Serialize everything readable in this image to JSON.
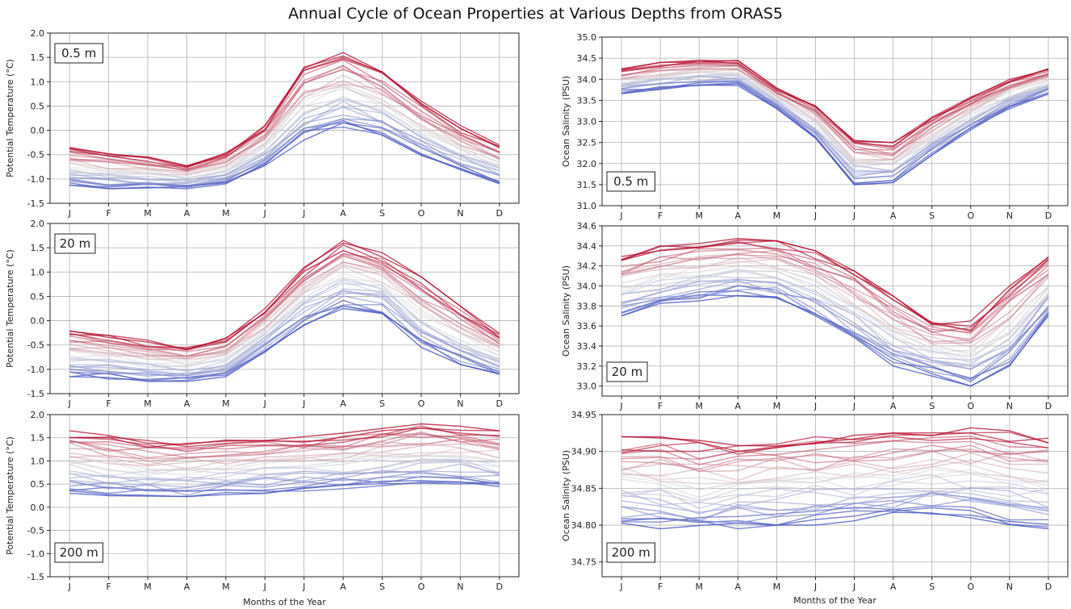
{
  "title": "Annual Cycle of Ocean Properties at Various Depths from ORAS5",
  "xlabel_left": "Months of the Year",
  "xlabel_right": "Months of the Year",
  "colors": {
    "cool": "#3b4cc0",
    "neutral": "#dddddd",
    "warm": "#b40426"
  },
  "chart_data": [
    {
      "type": "line",
      "depth_label": "0.5 m",
      "ylabel": "Potential Temperature (°C)",
      "ylim": [
        -1.5,
        2.0
      ],
      "yticks": [
        -1.5,
        -1.0,
        -0.5,
        0.0,
        0.5,
        1.0,
        1.5,
        2.0
      ],
      "ytick_labels": [
        "-1.5",
        "-1.0",
        "-0.5",
        "0.0",
        "0.5",
        "1.0",
        "1.5",
        "2.0"
      ],
      "categories": [
        "J",
        "F",
        "M",
        "A",
        "M",
        "J",
        "J",
        "A",
        "S",
        "O",
        "N",
        "D"
      ],
      "grid": true,
      "ensemble_mean": [
        -0.85,
        -0.9,
        -0.95,
        -1.0,
        -0.85,
        -0.45,
        0.2,
        0.75,
        0.45,
        0.0,
        -0.45,
        -0.75
      ],
      "low_envelope": [
        -1.15,
        -1.2,
        -1.2,
        -1.2,
        -1.1,
        -0.75,
        -0.2,
        0.05,
        -0.1,
        -0.55,
        -0.85,
        -1.1
      ],
      "high_envelope": [
        -0.35,
        -0.45,
        -0.55,
        -0.7,
        -0.45,
        0.1,
        1.3,
        1.6,
        1.2,
        0.6,
        0.1,
        -0.3
      ],
      "series_count": 30
    },
    {
      "type": "line",
      "depth_label": "0.5 m",
      "ylabel": "Ocean Salinity (PSU)",
      "ylim": [
        31.0,
        35.0
      ],
      "yticks": [
        31.0,
        31.5,
        32.0,
        32.5,
        33.0,
        33.5,
        34.0,
        34.5,
        35.0
      ],
      "ytick_labels": [
        "31.0",
        "31.5",
        "32.0",
        "32.5",
        "33.0",
        "33.5",
        "34.0",
        "34.5",
        "35.0"
      ],
      "categories": [
        "J",
        "F",
        "M",
        "A",
        "M",
        "J",
        "J",
        "A",
        "S",
        "O",
        "N",
        "D"
      ],
      "grid": true,
      "ensemble_mean": [
        34.0,
        34.1,
        34.15,
        34.15,
        33.6,
        33.0,
        32.1,
        31.95,
        32.7,
        33.25,
        33.65,
        33.95
      ],
      "low_envelope": [
        33.65,
        33.75,
        33.85,
        33.85,
        33.3,
        32.6,
        31.5,
        31.55,
        32.2,
        32.8,
        33.3,
        33.65
      ],
      "high_envelope": [
        34.25,
        34.4,
        34.45,
        34.45,
        33.8,
        33.4,
        32.55,
        32.5,
        33.1,
        33.6,
        34.0,
        34.25
      ],
      "series_count": 30
    },
    {
      "type": "line",
      "depth_label": "20 m",
      "ylabel": "Potential Temperature (°C)",
      "ylim": [
        -1.5,
        2.0
      ],
      "yticks": [
        -1.5,
        -1.0,
        -0.5,
        0.0,
        0.5,
        1.0,
        1.5,
        2.0
      ],
      "ytick_labels": [
        "-1.5",
        "-1.0",
        "-0.5",
        "0.0",
        "0.5",
        "1.0",
        "1.5",
        "2.0"
      ],
      "categories": [
        "J",
        "F",
        "M",
        "A",
        "M",
        "J",
        "J",
        "A",
        "S",
        "O",
        "N",
        "D"
      ],
      "grid": true,
      "ensemble_mean": [
        -0.85,
        -0.95,
        -1.0,
        -1.0,
        -0.85,
        -0.3,
        0.35,
        0.85,
        0.75,
        0.0,
        -0.55,
        -0.75
      ],
      "low_envelope": [
        -1.15,
        -1.2,
        -1.25,
        -1.25,
        -1.15,
        -0.65,
        -0.1,
        0.25,
        0.15,
        -0.55,
        -0.9,
        -1.1
      ],
      "high_envelope": [
        -0.2,
        -0.3,
        -0.4,
        -0.55,
        -0.35,
        0.25,
        1.1,
        1.65,
        1.4,
        0.9,
        0.3,
        -0.25
      ],
      "series_count": 30
    },
    {
      "type": "line",
      "depth_label": "20 m",
      "ylabel": "Ocean Salinity (PSU)",
      "ylim": [
        32.9,
        34.6
      ],
      "yticks": [
        33.0,
        33.2,
        33.4,
        33.6,
        33.8,
        34.0,
        34.2,
        34.4,
        34.6
      ],
      "ytick_labels": [
        "33.0",
        "33.2",
        "33.4",
        "33.6",
        "33.8",
        "34.0",
        "34.2",
        "34.4",
        "34.6"
      ],
      "categories": [
        "J",
        "F",
        "M",
        "A",
        "M",
        "J",
        "J",
        "A",
        "S",
        "O",
        "N",
        "D"
      ],
      "grid": true,
      "ensemble_mean": [
        34.0,
        34.1,
        34.15,
        34.2,
        34.15,
        34.0,
        33.8,
        33.55,
        33.35,
        33.4,
        33.65,
        33.9
      ],
      "low_envelope": [
        33.7,
        33.8,
        33.85,
        33.9,
        33.85,
        33.7,
        33.45,
        33.2,
        33.1,
        33.0,
        33.2,
        33.7
      ],
      "high_envelope": [
        34.3,
        34.4,
        34.45,
        34.5,
        34.45,
        34.35,
        34.15,
        33.9,
        33.65,
        33.65,
        34.0,
        34.3
      ],
      "series_count": 30
    },
    {
      "type": "line",
      "depth_label": "200 m",
      "ylabel": "Potential Temperature (°C)",
      "ylim": [
        -1.5,
        2.0
      ],
      "yticks": [
        -1.5,
        -1.0,
        -0.5,
        0.0,
        0.5,
        1.0,
        1.5,
        2.0
      ],
      "ytick_labels": [
        "-1.5",
        "-1.0",
        "-0.5",
        "0.0",
        "0.5",
        "1.0",
        "1.5",
        "2.0"
      ],
      "categories": [
        "J",
        "F",
        "M",
        "A",
        "M",
        "J",
        "J",
        "A",
        "S",
        "O",
        "N",
        "D"
      ],
      "grid": true,
      "ensemble_mean": [
        0.85,
        0.8,
        0.75,
        0.72,
        0.75,
        0.8,
        0.85,
        0.9,
        0.95,
        1.0,
        1.0,
        0.9
      ],
      "low_envelope": [
        0.3,
        0.25,
        0.2,
        0.2,
        0.25,
        0.3,
        0.35,
        0.4,
        0.45,
        0.5,
        0.5,
        0.4
      ],
      "high_envelope": [
        1.65,
        1.55,
        1.45,
        1.4,
        1.45,
        1.5,
        1.55,
        1.6,
        1.7,
        1.8,
        1.75,
        1.65
      ],
      "series_count": 30
    },
    {
      "type": "line",
      "depth_label": "200 m",
      "ylabel": "Ocean Salinity (PSU)",
      "ylim": [
        34.73,
        34.95
      ],
      "yticks": [
        34.75,
        34.8,
        34.85,
        34.9,
        34.95
      ],
      "ytick_labels": [
        "34.75",
        "34.80",
        "34.85",
        "34.90",
        "34.95"
      ],
      "categories": [
        "J",
        "F",
        "M",
        "A",
        "M",
        "J",
        "J",
        "A",
        "S",
        "O",
        "N",
        "D"
      ],
      "grid": true,
      "ensemble_mean": [
        34.87,
        34.87,
        34.865,
        34.865,
        34.867,
        34.87,
        34.872,
        34.874,
        34.877,
        34.878,
        34.876,
        34.872
      ],
      "low_envelope": [
        34.8,
        34.795,
        34.79,
        34.795,
        34.8,
        34.8,
        34.805,
        34.81,
        34.815,
        34.81,
        34.8,
        34.795
      ],
      "high_envelope": [
        34.92,
        34.92,
        34.915,
        34.915,
        34.918,
        34.92,
        34.922,
        34.925,
        34.93,
        34.932,
        34.928,
        34.918
      ],
      "series_count": 30
    }
  ]
}
